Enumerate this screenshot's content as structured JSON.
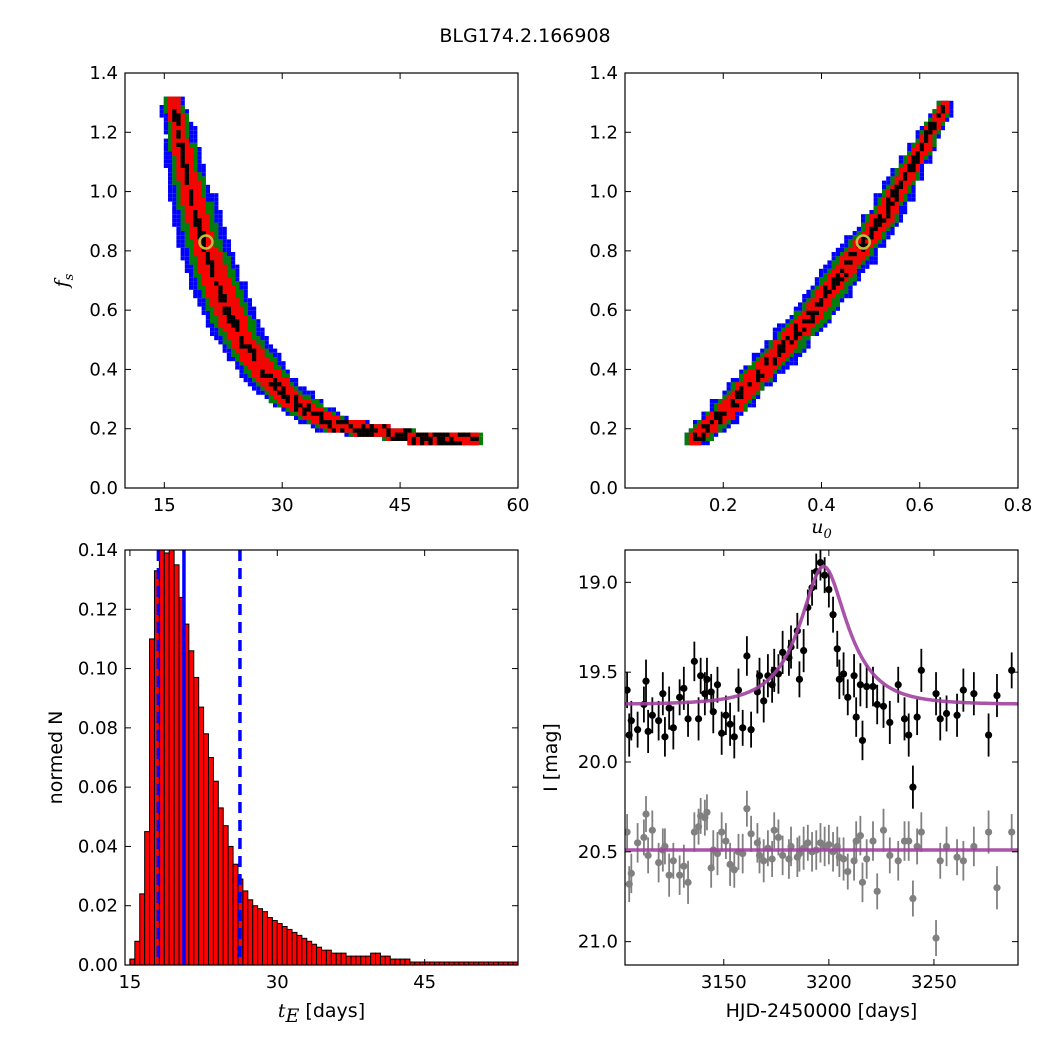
{
  "title": "BLG174.2.166908",
  "colors": {
    "sigma3": "#0000ff",
    "sigma2": "#008000",
    "sigma1": "#ff0000",
    "best": "#000000",
    "marker": "#bfbf3f",
    "hist_bar": "#ff0000",
    "vline": "#0000ff",
    "model": "#a040a0",
    "data_main": "#000000",
    "data_ref": "#808080"
  },
  "chart_data": [
    {
      "type": "heatmap",
      "panel": "fs-vs-tE",
      "xlabel": "",
      "ylabel": "f",
      "ylabel_sub": "s",
      "xlim": [
        10,
        60
      ],
      "ylim": [
        0.0,
        1.4
      ],
      "xticks": [
        "15",
        "30",
        "45",
        "60"
      ],
      "yticks": [
        "0.0",
        "0.2",
        "0.4",
        "0.6",
        "0.8",
        "1.0",
        "1.2",
        "1.4"
      ],
      "ridge": [
        [
          16.0,
          1.3
        ],
        [
          16.8,
          1.2
        ],
        [
          17.5,
          1.1
        ],
        [
          18.3,
          1.0
        ],
        [
          19.3,
          0.9
        ],
        [
          20.3,
          0.8
        ],
        [
          21.5,
          0.7
        ],
        [
          23.0,
          0.6
        ],
        [
          25.0,
          0.5
        ],
        [
          27.5,
          0.4
        ],
        [
          31.0,
          0.3
        ],
        [
          36.5,
          0.22
        ],
        [
          42.0,
          0.2
        ],
        [
          48.0,
          0.17
        ],
        [
          55.0,
          0.17
        ]
      ],
      "best_fit": [
        20.3,
        0.83
      ]
    },
    {
      "type": "heatmap",
      "panel": "fs-vs-u0",
      "xlabel": "u",
      "xlabel_sub": "0",
      "ylabel": "",
      "xlim": [
        0.0,
        0.8
      ],
      "ylim": [
        0.0,
        1.4
      ],
      "xticks": [
        "0.2",
        "0.4",
        "0.6",
        "0.8"
      ],
      "yticks": [
        "0.0",
        "0.2",
        "0.4",
        "0.6",
        "0.8",
        "1.0",
        "1.2",
        "1.4"
      ],
      "ridge": [
        [
          0.14,
          0.17
        ],
        [
          0.2,
          0.26
        ],
        [
          0.26,
          0.37
        ],
        [
          0.32,
          0.48
        ],
        [
          0.38,
          0.59
        ],
        [
          0.43,
          0.71
        ],
        [
          0.48,
          0.82
        ],
        [
          0.53,
          0.94
        ],
        [
          0.57,
          1.06
        ],
        [
          0.61,
          1.18
        ],
        [
          0.65,
          1.3
        ]
      ],
      "best_fit": [
        0.485,
        0.83
      ]
    },
    {
      "type": "bar",
      "panel": "tE-histogram",
      "xlabel": "t",
      "xlabel_sub": "E",
      "xlabel_suffix": " [days]",
      "ylabel": "normed N",
      "xlim": [
        14.5,
        54.5
      ],
      "ylim": [
        0.0,
        0.14
      ],
      "xticks": [
        "15",
        "30",
        "45"
      ],
      "yticks": [
        "0.00",
        "0.02",
        "0.04",
        "0.06",
        "0.08",
        "0.10",
        "0.12",
        "0.14"
      ],
      "bin_start": 15.0,
      "bin_width": 0.5,
      "values": [
        0.002,
        0.008,
        0.024,
        0.045,
        0.11,
        0.133,
        0.141,
        0.139,
        0.142,
        0.135,
        0.124,
        0.115,
        0.106,
        0.097,
        0.087,
        0.078,
        0.07,
        0.062,
        0.053,
        0.047,
        0.04,
        0.034,
        0.029,
        0.025,
        0.022,
        0.02,
        0.019,
        0.018,
        0.016,
        0.015,
        0.014,
        0.013,
        0.012,
        0.011,
        0.01,
        0.009,
        0.008,
        0.007,
        0.006,
        0.005,
        0.005,
        0.004,
        0.004,
        0.004,
        0.003,
        0.003,
        0.003,
        0.003,
        0.003,
        0.004,
        0.004,
        0.003,
        0.003,
        0.002,
        0.002,
        0.002,
        0.002,
        0.001,
        0.001,
        0.001,
        0.001,
        0.001,
        0.001,
        0.001,
        0.001,
        0.001,
        0.001,
        0.001,
        0.001,
        0.001,
        0.001,
        0.001,
        0.001,
        0.001,
        0.001,
        0.001,
        0.001,
        0.001,
        0.001,
        0.001
      ],
      "vlines": [
        {
          "x": 17.9,
          "style": "dashed"
        },
        {
          "x": 20.5,
          "style": "solid"
        },
        {
          "x": 26.2,
          "style": "dashed"
        }
      ]
    },
    {
      "type": "scatter",
      "panel": "light-curve",
      "xlabel": "HJD-2450000 [days]",
      "ylabel": "I [mag]",
      "xlim": [
        3103,
        3290
      ],
      "ylim": [
        21.13,
        18.82
      ],
      "y_inverted": true,
      "xticks": [
        "3150",
        "3200",
        "3250"
      ],
      "yticks": [
        "19.0",
        "19.5",
        "20.0",
        "20.5",
        "21.0"
      ],
      "model": {
        "t0": 3197.5,
        "tE": 20.3,
        "u0": 0.485,
        "fs": 0.83,
        "base": 19.68
      },
      "reference_level": 20.49,
      "series": [
        {
          "role": "main",
          "points": [
            [
              3104,
              19.6,
              0.1
            ],
            [
              3105,
              19.85,
              0.12
            ],
            [
              3106,
              19.77,
              0.11
            ],
            [
              3109,
              19.82,
              0.1
            ],
            [
              3112,
              19.68,
              0.1
            ],
            [
              3113,
              19.55,
              0.12
            ],
            [
              3114,
              19.83,
              0.12
            ],
            [
              3116,
              19.74,
              0.1
            ],
            [
              3119,
              19.77,
              0.11
            ],
            [
              3121,
              19.62,
              0.12
            ],
            [
              3122,
              19.86,
              0.11
            ],
            [
              3124,
              19.7,
              0.12
            ],
            [
              3126,
              19.81,
              0.12
            ],
            [
              3129,
              19.64,
              0.1
            ],
            [
              3131,
              19.59,
              0.12
            ],
            [
              3133,
              19.76,
              0.1
            ],
            [
              3136,
              19.44,
              0.11
            ],
            [
              3138,
              19.76,
              0.12
            ],
            [
              3139,
              19.52,
              0.1
            ],
            [
              3141,
              19.62,
              0.12
            ],
            [
              3142,
              19.54,
              0.12
            ],
            [
              3144,
              19.61,
              0.1
            ],
            [
              3145,
              19.72,
              0.12
            ],
            [
              3147,
              19.57,
              0.1
            ],
            [
              3149,
              19.84,
              0.12
            ],
            [
              3151,
              19.74,
              0.11
            ],
            [
              3153,
              19.79,
              0.12
            ],
            [
              3155,
              19.86,
              0.12
            ],
            [
              3157,
              19.6,
              0.12
            ],
            [
              3159,
              19.81,
              0.1
            ],
            [
              3161,
              19.41,
              0.11
            ],
            [
              3163,
              19.82,
              0.1
            ],
            [
              3166,
              19.61,
              0.12
            ],
            [
              3167,
              19.52,
              0.1
            ],
            [
              3169,
              19.66,
              0.12
            ],
            [
              3171,
              19.52,
              0.12
            ],
            [
              3173,
              19.57,
              0.1
            ],
            [
              3174,
              19.49,
              0.12
            ],
            [
              3176,
              19.51,
              0.11
            ],
            [
              3178,
              19.39,
              0.12
            ],
            [
              3181,
              19.42,
              0.1
            ],
            [
              3182,
              19.36,
              0.12
            ],
            [
              3185,
              19.27,
              0.1
            ],
            [
              3186,
              19.54,
              0.1
            ],
            [
              3188,
              19.38,
              0.12
            ],
            [
              3190,
              19.14,
              0.1
            ],
            [
              3192,
              19.03,
              0.1
            ],
            [
              3194,
              18.94,
              0.1
            ],
            [
              3196,
              18.89,
              0.1
            ],
            [
              3198,
              18.96,
              0.1
            ],
            [
              3200,
              19.04,
              0.1
            ],
            [
              3202,
              19.18,
              0.1
            ],
            [
              3204,
              19.37,
              0.1
            ],
            [
              3205,
              19.54,
              0.11
            ],
            [
              3207,
              19.51,
              0.12
            ],
            [
              3209,
              19.64,
              0.1
            ],
            [
              3212,
              19.52,
              0.12
            ],
            [
              3213,
              19.75,
              0.11
            ],
            [
              3215,
              19.57,
              0.12
            ],
            [
              3216,
              19.88,
              0.11
            ],
            [
              3218,
              19.58,
              0.12
            ],
            [
              3221,
              19.58,
              0.11
            ],
            [
              3223,
              19.68,
              0.11
            ],
            [
              3226,
              19.69,
              0.12
            ],
            [
              3229,
              19.78,
              0.12
            ],
            [
              3233,
              19.57,
              0.1
            ],
            [
              3236,
              19.76,
              0.12
            ],
            [
              3238,
              19.85,
              0.12
            ],
            [
              3240,
              20.14,
              0.12
            ],
            [
              3242,
              19.75,
              0.1
            ],
            [
              3244,
              19.49,
              0.12
            ],
            [
              3251,
              19.62,
              0.12
            ],
            [
              3253,
              19.76,
              0.12
            ],
            [
              3256,
              19.73,
              0.1
            ],
            [
              3261,
              19.74,
              0.12
            ],
            [
              3264,
              19.6,
              0.12
            ],
            [
              3269,
              19.62,
              0.12
            ],
            [
              3276,
              19.85,
              0.12
            ],
            [
              3280,
              19.63,
              0.12
            ],
            [
              3287,
              19.49,
              0.1
            ]
          ]
        },
        {
          "role": "reference",
          "points": [
            [
              3104,
              20.39,
              0.1
            ],
            [
              3105,
              20.68,
              0.1
            ],
            [
              3106,
              20.62,
              0.11
            ],
            [
              3109,
              20.45,
              0.11
            ],
            [
              3112,
              20.42,
              0.1
            ],
            [
              3113,
              20.29,
              0.1
            ],
            [
              3114,
              20.52,
              0.1
            ],
            [
              3116,
              20.38,
              0.11
            ],
            [
              3119,
              20.56,
              0.11
            ],
            [
              3121,
              20.49,
              0.12
            ],
            [
              3122,
              20.47,
              0.1
            ],
            [
              3124,
              20.63,
              0.12
            ],
            [
              3126,
              20.55,
              0.1
            ],
            [
              3129,
              20.63,
              0.11
            ],
            [
              3131,
              20.58,
              0.12
            ],
            [
              3133,
              20.67,
              0.12
            ],
            [
              3136,
              20.39,
              0.11
            ],
            [
              3138,
              20.36,
              0.1
            ],
            [
              3139,
              20.3,
              0.1
            ],
            [
              3141,
              20.31,
              0.1
            ],
            [
              3142,
              20.28,
              0.1
            ],
            [
              3144,
              20.59,
              0.11
            ],
            [
              3145,
              20.49,
              0.11
            ],
            [
              3147,
              20.51,
              0.12
            ],
            [
              3149,
              20.39,
              0.11
            ],
            [
              3151,
              20.44,
              0.1
            ],
            [
              3153,
              20.57,
              0.12
            ],
            [
              3155,
              20.6,
              0.1
            ],
            [
              3157,
              20.5,
              0.1
            ],
            [
              3159,
              20.51,
              0.11
            ],
            [
              3161,
              20.26,
              0.1
            ],
            [
              3163,
              20.4,
              0.1
            ],
            [
              3166,
              20.45,
              0.11
            ],
            [
              3167,
              20.52,
              0.1
            ],
            [
              3169,
              20.55,
              0.12
            ],
            [
              3171,
              20.48,
              0.1
            ],
            [
              3173,
              20.54,
              0.1
            ],
            [
              3174,
              20.38,
              0.1
            ],
            [
              3176,
              20.42,
              0.1
            ],
            [
              3178,
              20.52,
              0.11
            ],
            [
              3181,
              20.54,
              0.11
            ],
            [
              3182,
              20.47,
              0.11
            ],
            [
              3185,
              20.53,
              0.11
            ],
            [
              3186,
              20.51,
              0.1
            ],
            [
              3188,
              20.48,
              0.12
            ],
            [
              3190,
              20.45,
              0.1
            ],
            [
              3192,
              20.5,
              0.11
            ],
            [
              3194,
              20.49,
              0.11
            ],
            [
              3196,
              20.45,
              0.11
            ],
            [
              3198,
              20.47,
              0.11
            ],
            [
              3200,
              20.46,
              0.11
            ],
            [
              3202,
              20.5,
              0.11
            ],
            [
              3204,
              20.47,
              0.11
            ],
            [
              3205,
              20.53,
              0.11
            ],
            [
              3207,
              20.54,
              0.12
            ],
            [
              3209,
              20.61,
              0.1
            ],
            [
              3212,
              20.55,
              0.11
            ],
            [
              3213,
              20.44,
              0.11
            ],
            [
              3215,
              20.41,
              0.11
            ],
            [
              3216,
              20.67,
              0.11
            ],
            [
              3218,
              20.54,
              0.11
            ],
            [
              3221,
              20.44,
              0.11
            ],
            [
              3223,
              20.72,
              0.1
            ],
            [
              3226,
              20.38,
              0.12
            ],
            [
              3229,
              20.52,
              0.1
            ],
            [
              3233,
              20.55,
              0.11
            ],
            [
              3236,
              20.44,
              0.11
            ],
            [
              3238,
              20.44,
              0.11
            ],
            [
              3240,
              20.76,
              0.1
            ],
            [
              3242,
              20.47,
              0.1
            ],
            [
              3244,
              20.39,
              0.11
            ],
            [
              3251,
              20.98,
              0.1
            ],
            [
              3253,
              20.55,
              0.1
            ],
            [
              3256,
              20.47,
              0.11
            ],
            [
              3261,
              20.53,
              0.1
            ],
            [
              3264,
              20.55,
              0.11
            ],
            [
              3269,
              20.47,
              0.11
            ],
            [
              3276,
              20.39,
              0.12
            ],
            [
              3280,
              20.7,
              0.12
            ],
            [
              3287,
              20.39,
              0.1
            ]
          ]
        }
      ]
    }
  ]
}
